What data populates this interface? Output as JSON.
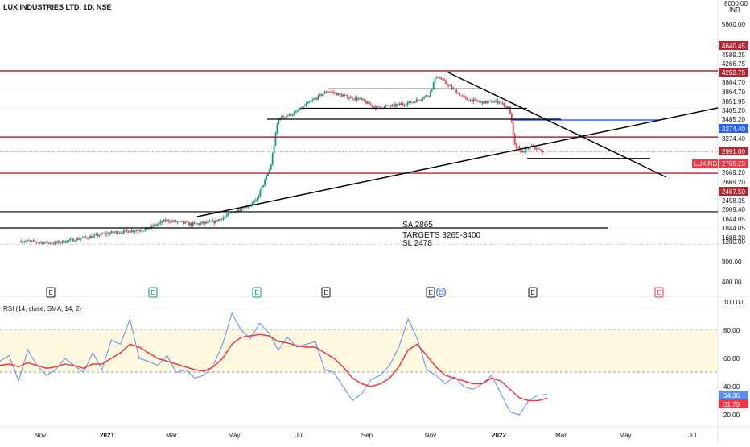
{
  "header": {
    "title": "LUX INDUSTRIES LTD, 1D, NSE",
    "currency_top": "8000.00",
    "currency_unit": "INR"
  },
  "rsi": {
    "label": "RSI (14, close, SMA, 14, 2)"
  },
  "annotations": [
    "SA 2865",
    "TARGETS 3265-3400",
    "SL 2478"
  ],
  "symbol_badge": "LUXIND",
  "event_markers": [
    {
      "key": "Nov-earnings",
      "label": "E",
      "kind": "earnings",
      "color": "#131722"
    },
    {
      "key": "Mar-earnings",
      "label": "E",
      "kind": "earnings",
      "color": "#089981"
    },
    {
      "key": "May-earnings",
      "label": "E",
      "kind": "earnings",
      "color": "#089981"
    },
    {
      "key": "Jul-earnings",
      "label": "E",
      "kind": "earnings",
      "color": "#131722"
    },
    {
      "key": "Nov-earnings2",
      "label": "E",
      "kind": "earnings",
      "color": "#131722"
    },
    {
      "key": "Nov-dividend",
      "label": "D",
      "kind": "dividend",
      "color": "#2962ff"
    },
    {
      "key": "Jan-earnings",
      "label": "E",
      "kind": "earnings",
      "color": "#131722"
    },
    {
      "key": "May-earnings2",
      "label": "E",
      "kind": "earnings",
      "color": "#f23645"
    }
  ],
  "colors": {
    "up": "#089981",
    "down": "#f23645",
    "resistance": "#b22833",
    "trendline": "#000000",
    "target_line": "#2962ff",
    "rsi_line": "#5b8def",
    "rsi_ma": "#f23645",
    "rsi_band": "#fff9e0"
  },
  "chart_data": [
    {
      "type": "candlestick",
      "title": "LUX INDUSTRIES LTD, 1D, NSE",
      "x_tick_labels": [
        "Nov",
        "2021",
        "Mar",
        "May",
        "Jul",
        "Sep",
        "Nov",
        "2022",
        "Mar",
        "May",
        "Jul"
      ],
      "y_scale": "log",
      "y_tick_labels": [
        "5600.00",
        "4266.75",
        "3864.70",
        "3851.95",
        "3485.20",
        "2991.00",
        "2458.35",
        "1844.05",
        "1200.00",
        "800.00",
        "400.00"
      ],
      "price_badges": [
        {
          "value": "4640.45",
          "color": "#b22833"
        },
        {
          "value": "4589.25",
          "color": "#ffffff"
        },
        {
          "value": "4266.75",
          "color": "#ffffff"
        },
        {
          "value": "4252.75",
          "color": "#b22833"
        },
        {
          "value": "3864.70",
          "color": "#ffffff"
        },
        {
          "value": "3864.70",
          "color": "#ffffff"
        },
        {
          "value": "3851.95",
          "color": "#ffffff"
        },
        {
          "value": "3485.20",
          "color": "#ffffff"
        },
        {
          "value": "3485.20",
          "color": "#ffffff"
        },
        {
          "value": "3274.40",
          "color": "#2962ff"
        },
        {
          "value": "3274.40",
          "color": "#ffffff"
        },
        {
          "value": "2991.00",
          "color": "#b22833"
        },
        {
          "value": "2765.25",
          "color": "#f23645"
        },
        {
          "value": "2669.20",
          "color": "#ffffff"
        },
        {
          "value": "2669.20",
          "color": "#ffffff"
        },
        {
          "value": "2467.50",
          "color": "#b22833"
        },
        {
          "value": "2458.35",
          "color": "#ffffff"
        },
        {
          "value": "2009.40",
          "color": "#ffffff"
        },
        {
          "value": "1844.05",
          "color": "#ffffff"
        },
        {
          "value": "1844.05",
          "color": "#ffffff"
        },
        {
          "value": "1688.20",
          "color": "#ffffff"
        }
      ],
      "last_price": 2765.25,
      "approx_close_path": [
        {
          "x": "2020-10-15",
          "y": 1720
        },
        {
          "x": "2020-11-15",
          "y": 1700
        },
        {
          "x": "2020-12-20",
          "y": 1760
        },
        {
          "x": "2021-01-10",
          "y": 1800
        },
        {
          "x": "2021-02-10",
          "y": 1830
        },
        {
          "x": "2021-03-01",
          "y": 1920
        },
        {
          "x": "2021-03-25",
          "y": 1880
        },
        {
          "x": "2021-04-15",
          "y": 1900
        },
        {
          "x": "2021-05-01",
          "y": 1990
        },
        {
          "x": "2021-05-25",
          "y": 2120
        },
        {
          "x": "2021-06-08",
          "y": 2550
        },
        {
          "x": "2021-06-15",
          "y": 3300
        },
        {
          "x": "2021-07-01",
          "y": 3400
        },
        {
          "x": "2021-07-15",
          "y": 3600
        },
        {
          "x": "2021-08-01",
          "y": 3820
        },
        {
          "x": "2021-08-20",
          "y": 3700
        },
        {
          "x": "2021-09-01",
          "y": 3650
        },
        {
          "x": "2021-09-15",
          "y": 3500
        },
        {
          "x": "2021-10-01",
          "y": 3530
        },
        {
          "x": "2021-10-20",
          "y": 3600
        },
        {
          "x": "2021-11-05",
          "y": 3750
        },
        {
          "x": "2021-11-12",
          "y": 4150
        },
        {
          "x": "2021-11-25",
          "y": 3900
        },
        {
          "x": "2021-12-10",
          "y": 3650
        },
        {
          "x": "2021-12-25",
          "y": 3600
        },
        {
          "x": "2022-01-10",
          "y": 3610
        },
        {
          "x": "2022-01-20",
          "y": 3480
        },
        {
          "x": "2022-01-25",
          "y": 2850
        },
        {
          "x": "2022-02-01",
          "y": 2760
        },
        {
          "x": "2022-02-10",
          "y": 2850
        },
        {
          "x": "2022-02-20",
          "y": 2765
        }
      ],
      "horizontal_levels": [
        {
          "price": 4252.75,
          "color": "#b22833"
        },
        {
          "price": 3864.7,
          "color": "#000000"
        },
        {
          "price": 3485.2,
          "color": "#000000"
        },
        {
          "price": 3274.4,
          "color": "#2962ff"
        },
        {
          "price": 2991.0,
          "color": "#b22833"
        },
        {
          "price": 2669.2,
          "color": "#000000"
        },
        {
          "price": 2467.5,
          "color": "#b22833"
        },
        {
          "price": 2009.4,
          "color": "#000000"
        },
        {
          "price": 1844.05,
          "color": "#000000"
        }
      ]
    },
    {
      "type": "line",
      "title": "RSI (14, close, SMA, 14, 2)",
      "ylim": [
        20,
        100
      ],
      "y_tick_labels": [
        "100.00",
        "80.00",
        "60.00",
        "40.00",
        "20.00"
      ],
      "band": [
        50,
        80
      ],
      "series": [
        {
          "values": [
            58,
            62,
            44,
            66,
            55,
            48,
            52,
            60,
            55,
            50,
            64,
            52,
            73,
            70,
            88,
            60,
            58,
            55,
            62,
            50,
            52,
            46,
            48,
            55,
            70,
            92,
            80,
            74,
            85,
            78,
            66,
            75,
            68,
            70,
            72,
            52,
            50,
            40,
            30,
            35,
            45,
            48,
            55,
            68,
            88,
            74,
            52,
            48,
            42,
            47,
            40,
            38,
            42,
            48,
            35,
            22,
            20,
            30,
            34,
            34.36
          ]
        },
        {
          "values": [
            55,
            56,
            54,
            57,
            55,
            53,
            54,
            56,
            55,
            53,
            56,
            56,
            60,
            64,
            70,
            68,
            64,
            60,
            58,
            56,
            54,
            52,
            51,
            54,
            60,
            70,
            75,
            76,
            77,
            76,
            72,
            71,
            69,
            68,
            68,
            64,
            60,
            54,
            46,
            42,
            40,
            42,
            46,
            54,
            66,
            70,
            62,
            54,
            48,
            46,
            44,
            42,
            42,
            46,
            44,
            38,
            32,
            30,
            30,
            31.79
          ]
        }
      ],
      "last_values": [
        34.36,
        31.79
      ]
    }
  ]
}
